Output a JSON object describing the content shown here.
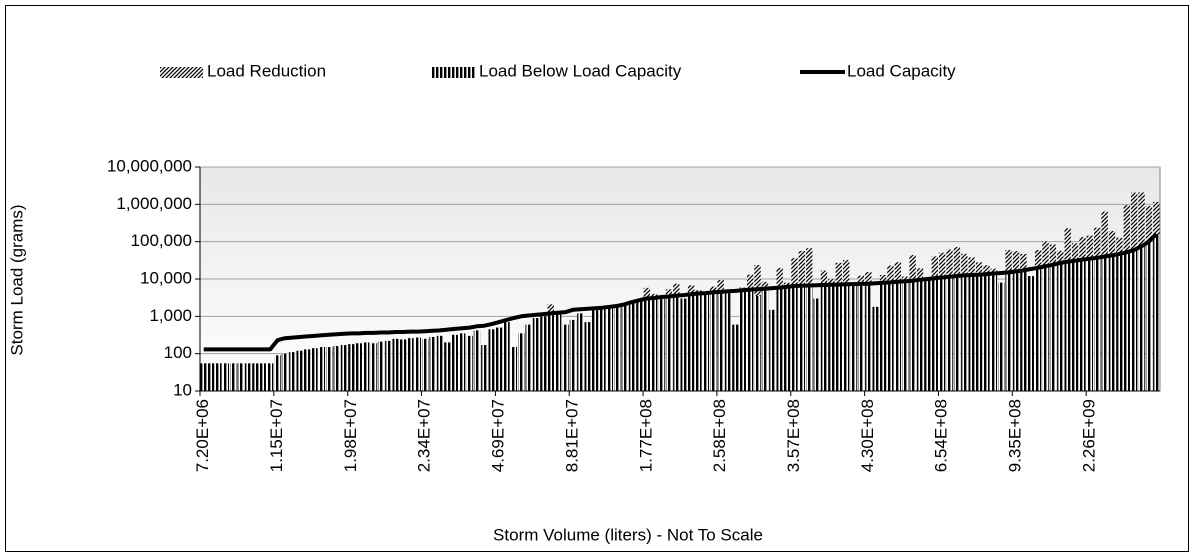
{
  "chart_data": {
    "type": "bar",
    "x_label": "Storm Volume (liters) - Not To Scale",
    "y_label": "Storm Load (grams)",
    "log_scale": true,
    "grid": true,
    "legend": "top",
    "ylim": [
      10,
      10000000
    ],
    "yticks": [
      10,
      100,
      {
        "value": 1000,
        "label": "1,000"
      },
      {
        "value": 10000,
        "label": "10,000"
      },
      {
        "value": 100000,
        "label": "100,000"
      },
      {
        "value": 1000000,
        "label": "1,000,000"
      },
      {
        "value": 10000000,
        "label": "10,000,000"
      }
    ],
    "categories": [
      "7.20E+06",
      null,
      null,
      null,
      null,
      null,
      null,
      null,
      null,
      null,
      "1.15E+07",
      null,
      null,
      null,
      null,
      null,
      null,
      null,
      null,
      null,
      "1.98E+07",
      null,
      null,
      null,
      null,
      null,
      null,
      null,
      null,
      null,
      "2.34E+07",
      null,
      null,
      null,
      null,
      null,
      null,
      null,
      null,
      null,
      "4.69E+07",
      null,
      null,
      null,
      null,
      null,
      null,
      null,
      null,
      null,
      "8.81E+07",
      null,
      null,
      null,
      null,
      null,
      null,
      null,
      null,
      null,
      "1.77E+08",
      null,
      null,
      null,
      null,
      null,
      null,
      null,
      null,
      null,
      "2.58E+08",
      null,
      null,
      null,
      null,
      null,
      null,
      null,
      null,
      null,
      "3.57E+08",
      null,
      null,
      null,
      null,
      null,
      null,
      null,
      null,
      null,
      "4.30E+08",
      null,
      null,
      null,
      null,
      null,
      null,
      null,
      null,
      null,
      "6.54E+08",
      null,
      null,
      null,
      null,
      null,
      null,
      null,
      null,
      null,
      "9.35E+08",
      null,
      null,
      null,
      null,
      null,
      null,
      null,
      null,
      null,
      "2.26E+09",
      null,
      null,
      null,
      null,
      null,
      null,
      null,
      null,
      null
    ],
    "series": [
      {
        "name": "Load Below Load Capacity",
        "color": "#000000",
        "values": [
          55,
          55,
          55,
          55,
          55,
          55,
          55,
          55,
          55,
          55,
          90,
          100,
          110,
          120,
          130,
          140,
          150,
          150,
          160,
          170,
          180,
          190,
          200,
          190,
          210,
          220,
          250,
          240,
          260,
          270,
          250,
          280,
          300,
          200,
          320,
          350,
          300,
          420,
          170,
          450,
          500,
          700,
          150,
          350,
          600,
          900,
          1000,
          1100,
          1400,
          600,
          800,
          1200,
          700,
          1500,
          1600,
          1700,
          1800,
          2000,
          2300,
          2600,
          2800,
          3000,
          2900,
          3300,
          3500,
          3000,
          3800,
          4000,
          4100,
          4300,
          4400,
          4600,
          600,
          4900,
          5100,
          3500,
          5400,
          1500,
          5800,
          6000,
          6300,
          6500,
          6600,
          3000,
          6800,
          6900,
          7000,
          7100,
          7200,
          7300,
          7400,
          1800,
          7800,
          8000,
          8300,
          8600,
          8900,
          9400,
          9900,
          10400,
          10900,
          11400,
          11900,
          12400,
          12700,
          12900,
          13400,
          13900,
          8000,
          14900,
          15900,
          16900,
          12000,
          19900,
          21900,
          23900,
          26900,
          28900,
          30900,
          32900,
          34900,
          36900,
          39900,
          42900,
          46900,
          51900,
          59900,
          74900,
          99900,
          159900
        ]
      },
      {
        "name": "Load Reduction",
        "color": "#000000",
        "values": [
          0,
          0,
          0,
          0,
          0,
          0,
          0,
          0,
          0,
          0,
          0,
          0,
          0,
          0,
          0,
          0,
          0,
          0,
          0,
          0,
          0,
          0,
          0,
          0,
          0,
          0,
          0,
          0,
          0,
          0,
          0,
          0,
          0,
          0,
          0,
          0,
          0,
          0,
          0,
          0,
          0,
          0,
          0,
          0,
          0,
          0,
          0,
          1000,
          0,
          0,
          0,
          0,
          0,
          0,
          0,
          0,
          200,
          0,
          300,
          0,
          3000,
          1000,
          0,
          2000,
          4000,
          0,
          3000,
          1000,
          0,
          2000,
          5000,
          0,
          0,
          1000,
          8000,
          20000,
          3000,
          0,
          14000,
          2000,
          30000,
          50000,
          60000,
          0,
          10000,
          3000,
          20000,
          25000,
          0,
          5000,
          8000,
          0,
          5000,
          15000,
          20000,
          3000,
          35000,
          10000,
          0,
          30000,
          40000,
          50000,
          60000,
          35000,
          25000,
          15000,
          10000,
          5000,
          0,
          45000,
          40000,
          30000,
          0,
          40000,
          80000,
          60000,
          30000,
          200000,
          60000,
          100000,
          110000,
          200000,
          600000,
          150000,
          80000,
          900000,
          2000000,
          2000000,
          800000,
          1000000
        ]
      },
      {
        "name": "Load Capacity",
        "color": "#000000",
        "values": [
          130,
          130,
          130,
          130,
          130,
          130,
          130,
          130,
          130,
          130,
          230,
          260,
          270,
          280,
          290,
          300,
          310,
          320,
          330,
          340,
          350,
          350,
          360,
          360,
          370,
          370,
          380,
          380,
          390,
          390,
          400,
          410,
          420,
          440,
          460,
          480,
          500,
          540,
          560,
          620,
          700,
          800,
          900,
          1000,
          1050,
          1100,
          1150,
          1200,
          1250,
          1300,
          1500,
          1550,
          1600,
          1650,
          1700,
          1800,
          1900,
          2100,
          2400,
          2700,
          3000,
          3100,
          3300,
          3400,
          3600,
          3700,
          3900,
          4100,
          4200,
          4400,
          4500,
          4700,
          4800,
          5000,
          5200,
          5300,
          5500,
          5700,
          5900,
          6200,
          6500,
          6600,
          6700,
          6800,
          6900,
          7000,
          7100,
          7200,
          7300,
          7400,
          7500,
          7700,
          7900,
          8100,
          8400,
          8700,
          9000,
          9500,
          10000,
          10500,
          11000,
          11500,
          12000,
          12500,
          12800,
          13000,
          13500,
          14000,
          14500,
          15000,
          16000,
          17000,
          18500,
          20000,
          22000,
          24000,
          27000,
          29000,
          31000,
          33000,
          35000,
          37000,
          40000,
          43000,
          47000,
          52000,
          60000,
          75000,
          100000,
          160000
        ]
      }
    ]
  }
}
